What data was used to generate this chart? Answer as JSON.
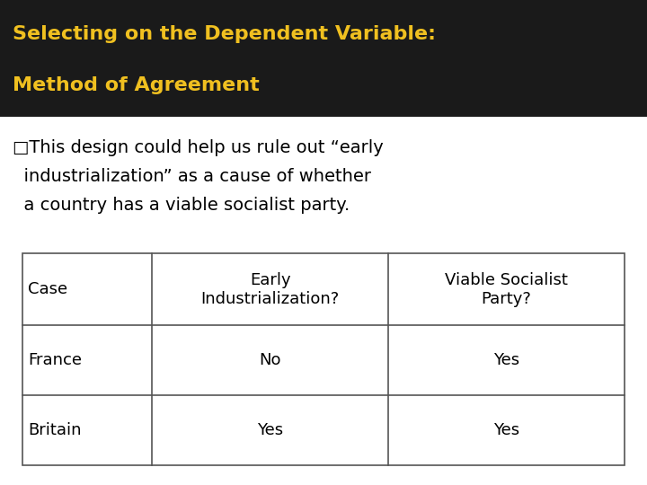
{
  "title_line1": "Selecting on the Dependent Variable:",
  "title_line2": "Method of Agreement",
  "title_color": "#F0C020",
  "title_bg_color": "#1a1a1a",
  "body_bg_color": "#FFFFFF",
  "bullet_text_line1": "□This design could help us rule out “early",
  "bullet_text_line2": "  industrialization” as a cause of whether",
  "bullet_text_line3": "  a country has a viable socialist party.",
  "table_headers": [
    "Case",
    "Early\nIndustrialization?",
    "Viable Socialist\nParty?"
  ],
  "table_rows": [
    [
      "France",
      "No",
      "Yes"
    ],
    [
      "Britain",
      "Yes",
      "Yes"
    ]
  ],
  "table_col_aligns": [
    "left",
    "center",
    "center"
  ],
  "font_family": "DejaVu Sans",
  "title_fontsize": 16,
  "body_fontsize": 14,
  "table_fontsize": 13
}
